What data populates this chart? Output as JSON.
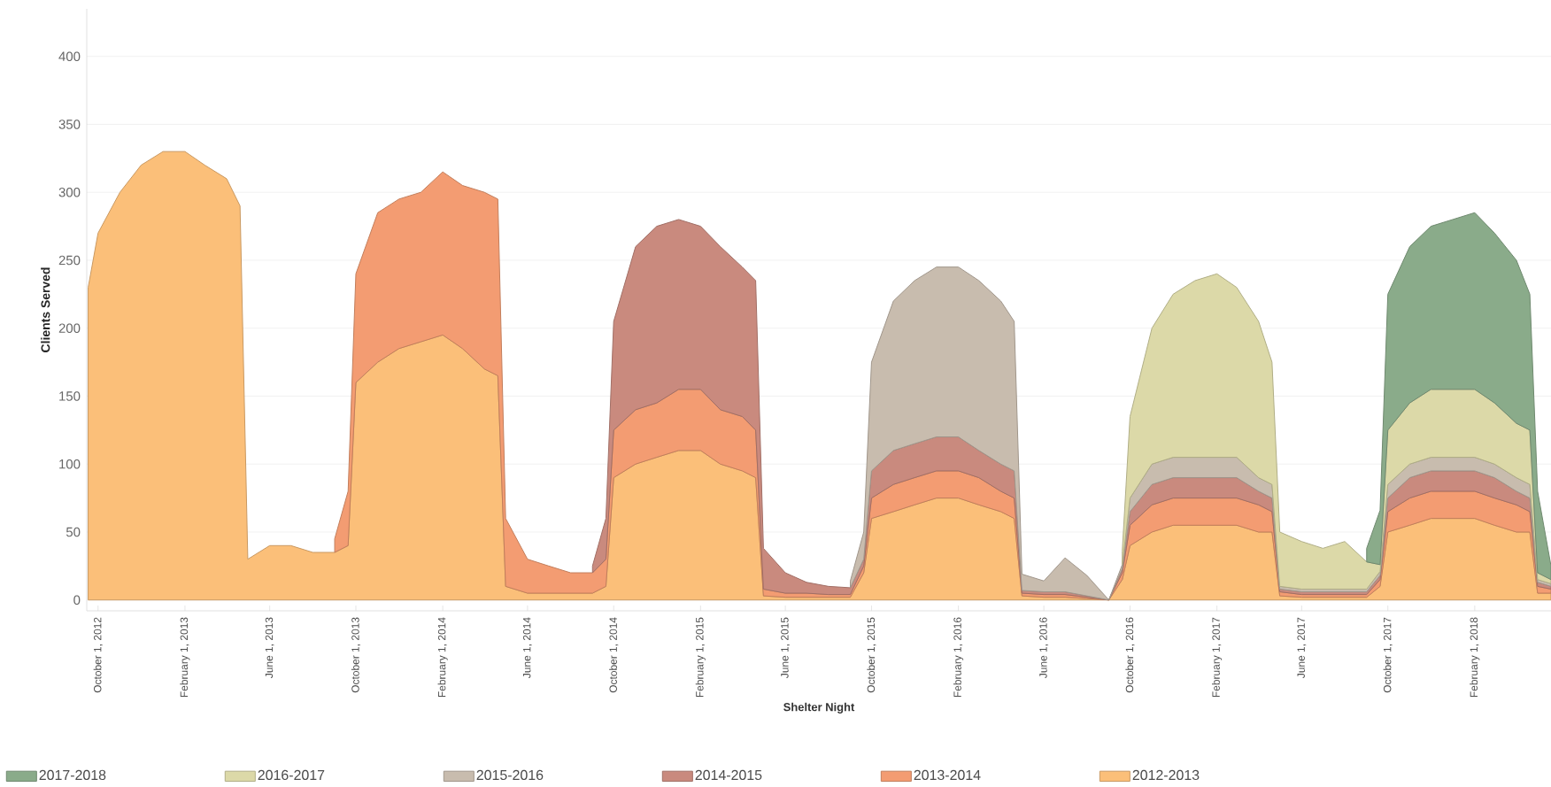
{
  "chart_data": {
    "type": "area",
    "stacked": true,
    "xlabel": "Shelter Night",
    "ylabel": "Clients Served",
    "grid": "y",
    "legend": "bottom",
    "xlim": [
      "2012-09-15",
      "2018-05-20"
    ],
    "xticks": [
      {
        "value": "2012-10-01",
        "label": "October 1, 2012"
      },
      {
        "value": "2013-02-01",
        "label": "February 1, 2013"
      },
      {
        "value": "2013-06-01",
        "label": "June 1, 2013"
      },
      {
        "value": "2013-10-01",
        "label": "October 1, 2013"
      },
      {
        "value": "2014-02-01",
        "label": "February 1, 2014"
      },
      {
        "value": "2014-06-01",
        "label": "June 1, 2014"
      },
      {
        "value": "2014-10-01",
        "label": "October 1, 2014"
      },
      {
        "value": "2015-02-01",
        "label": "February 1, 2015"
      },
      {
        "value": "2015-06-01",
        "label": "June 1, 2015"
      },
      {
        "value": "2015-10-01",
        "label": "October 1, 2015"
      },
      {
        "value": "2016-02-01",
        "label": "February 1, 2016"
      },
      {
        "value": "2016-06-01",
        "label": "June 1, 2016"
      },
      {
        "value": "2016-10-01",
        "label": "October 1, 2016"
      },
      {
        "value": "2017-02-01",
        "label": "February 1, 2017"
      },
      {
        "value": "2017-06-01",
        "label": "June 1, 2017"
      },
      {
        "value": "2017-10-01",
        "label": "October 1, 2017"
      },
      {
        "value": "2018-02-01",
        "label": "February 1, 2018"
      }
    ],
    "ylim": [
      -8,
      435
    ],
    "yticks": [
      0,
      50,
      100,
      150,
      200,
      250,
      300,
      350,
      400
    ],
    "x": [
      "2012-09-17",
      "2012-10-01",
      "2012-11-01",
      "2012-12-01",
      "2013-01-01",
      "2013-02-01",
      "2013-03-01",
      "2013-04-01",
      "2013-04-20",
      "2013-05-01",
      "2013-06-01",
      "2013-07-01",
      "2013-08-01",
      "2013-09-01",
      "2013-09-20",
      "2013-10-01",
      "2013-11-01",
      "2013-12-01",
      "2014-01-01",
      "2014-02-01",
      "2014-03-01",
      "2014-04-01",
      "2014-04-20",
      "2014-05-01",
      "2014-06-01",
      "2014-07-01",
      "2014-08-01",
      "2014-09-01",
      "2014-09-20",
      "2014-10-01",
      "2014-11-01",
      "2014-12-01",
      "2015-01-01",
      "2015-02-01",
      "2015-03-01",
      "2015-04-01",
      "2015-04-20",
      "2015-05-01",
      "2015-06-01",
      "2015-07-01",
      "2015-08-01",
      "2015-09-01",
      "2015-09-20",
      "2015-10-01",
      "2015-11-01",
      "2015-12-01",
      "2016-01-01",
      "2016-02-01",
      "2016-03-01",
      "2016-04-01",
      "2016-04-20",
      "2016-05-01",
      "2016-06-01",
      "2016-07-01",
      "2016-08-01",
      "2016-09-01",
      "2016-09-20",
      "2016-10-01",
      "2016-11-01",
      "2016-12-01",
      "2017-01-01",
      "2017-02-01",
      "2017-03-01",
      "2017-04-01",
      "2017-04-20",
      "2017-05-01",
      "2017-06-01",
      "2017-07-01",
      "2017-08-01",
      "2017-09-01",
      "2017-09-20",
      "2017-10-01",
      "2017-11-01",
      "2017-12-01",
      "2018-01-01",
      "2018-02-01",
      "2018-03-01",
      "2018-04-01",
      "2018-04-20",
      "2018-05-01",
      "2018-05-20"
    ],
    "series": [
      {
        "name": "2012-2013",
        "color": "#fbbf79",
        "values": [
          230,
          270,
          300,
          320,
          330,
          330,
          320,
          310,
          290,
          30,
          40,
          40,
          35,
          35,
          40,
          160,
          175,
          185,
          190,
          195,
          185,
          170,
          165,
          10,
          5,
          5,
          5,
          5,
          10,
          90,
          100,
          105,
          110,
          110,
          100,
          95,
          90,
          3,
          2,
          2,
          2,
          2,
          20,
          60,
          65,
          70,
          75,
          75,
          70,
          65,
          60,
          3,
          2,
          2,
          1,
          0,
          15,
          40,
          50,
          55,
          55,
          55,
          55,
          50,
          50,
          3,
          2,
          2,
          2,
          2,
          10,
          50,
          55,
          60,
          60,
          60,
          55,
          50,
          50,
          5,
          5
        ]
      },
      {
        "name": "2013-2014",
        "color": "#f39c72",
        "values": [
          null,
          null,
          null,
          null,
          null,
          null,
          null,
          null,
          null,
          null,
          null,
          null,
          null,
          10,
          40,
          80,
          110,
          110,
          110,
          120,
          120,
          130,
          130,
          50,
          25,
          20,
          15,
          15,
          20,
          35,
          40,
          40,
          45,
          45,
          40,
          40,
          35,
          5,
          3,
          3,
          2,
          2,
          5,
          15,
          20,
          20,
          20,
          20,
          20,
          15,
          15,
          2,
          2,
          2,
          1,
          0,
          5,
          15,
          20,
          20,
          20,
          20,
          20,
          20,
          15,
          3,
          2,
          2,
          2,
          2,
          5,
          15,
          20,
          20,
          20,
          20,
          20,
          20,
          15,
          5,
          3
        ]
      },
      {
        "name": "2014-2015",
        "color": "#c98a7e",
        "values": [
          null,
          null,
          null,
          null,
          null,
          null,
          null,
          null,
          null,
          null,
          null,
          null,
          null,
          null,
          null,
          null,
          null,
          null,
          null,
          null,
          null,
          null,
          null,
          null,
          null,
          null,
          null,
          5,
          30,
          80,
          120,
          130,
          125,
          120,
          120,
          110,
          110,
          30,
          15,
          8,
          6,
          5,
          5,
          20,
          25,
          25,
          25,
          25,
          20,
          20,
          20,
          2,
          2,
          2,
          1,
          0,
          3,
          10,
          15,
          15,
          15,
          15,
          15,
          10,
          10,
          2,
          2,
          2,
          2,
          2,
          3,
          10,
          15,
          15,
          15,
          15,
          15,
          10,
          10,
          3,
          2
        ]
      },
      {
        "name": "2015-2016",
        "color": "#c8bcae",
        "values": [
          null,
          null,
          null,
          null,
          null,
          null,
          null,
          null,
          null,
          null,
          null,
          null,
          null,
          null,
          null,
          null,
          null,
          null,
          null,
          null,
          null,
          null,
          null,
          null,
          null,
          null,
          null,
          null,
          null,
          null,
          null,
          null,
          null,
          null,
          null,
          null,
          null,
          null,
          null,
          null,
          null,
          5,
          20,
          80,
          110,
          120,
          125,
          125,
          125,
          120,
          110,
          12,
          8,
          25,
          15,
          0,
          3,
          10,
          15,
          15,
          15,
          15,
          15,
          10,
          10,
          2,
          2,
          2,
          2,
          2,
          3,
          10,
          10,
          10,
          10,
          10,
          10,
          10,
          10,
          2,
          2
        ]
      },
      {
        "name": "2016-2017",
        "color": "#dcd9a8",
        "values": [
          null,
          null,
          null,
          null,
          null,
          null,
          null,
          null,
          null,
          null,
          null,
          null,
          null,
          null,
          null,
          null,
          null,
          null,
          null,
          null,
          null,
          null,
          null,
          null,
          null,
          null,
          null,
          null,
          null,
          null,
          null,
          null,
          null,
          null,
          null,
          null,
          null,
          null,
          null,
          null,
          null,
          null,
          null,
          null,
          null,
          null,
          null,
          null,
          null,
          null,
          null,
          null,
          null,
          null,
          null,
          null,
          10,
          60,
          100,
          120,
          130,
          135,
          125,
          115,
          90,
          40,
          35,
          30,
          35,
          20,
          5,
          40,
          45,
          50,
          50,
          50,
          45,
          40,
          40,
          5,
          3
        ]
      },
      {
        "name": "2017-2018",
        "color": "#8aab8a",
        "values": [
          null,
          null,
          null,
          null,
          null,
          null,
          null,
          null,
          null,
          null,
          null,
          null,
          null,
          null,
          null,
          null,
          null,
          null,
          null,
          null,
          null,
          null,
          null,
          null,
          null,
          null,
          null,
          null,
          null,
          null,
          null,
          null,
          null,
          null,
          null,
          null,
          null,
          null,
          null,
          null,
          null,
          null,
          null,
          null,
          null,
          null,
          null,
          null,
          null,
          null,
          null,
          null,
          null,
          null,
          null,
          null,
          null,
          null,
          null,
          null,
          null,
          null,
          null,
          null,
          null,
          null,
          null,
          null,
          null,
          10,
          40,
          100,
          115,
          120,
          125,
          130,
          125,
          120,
          100,
          60,
          10
        ]
      }
    ]
  }
}
